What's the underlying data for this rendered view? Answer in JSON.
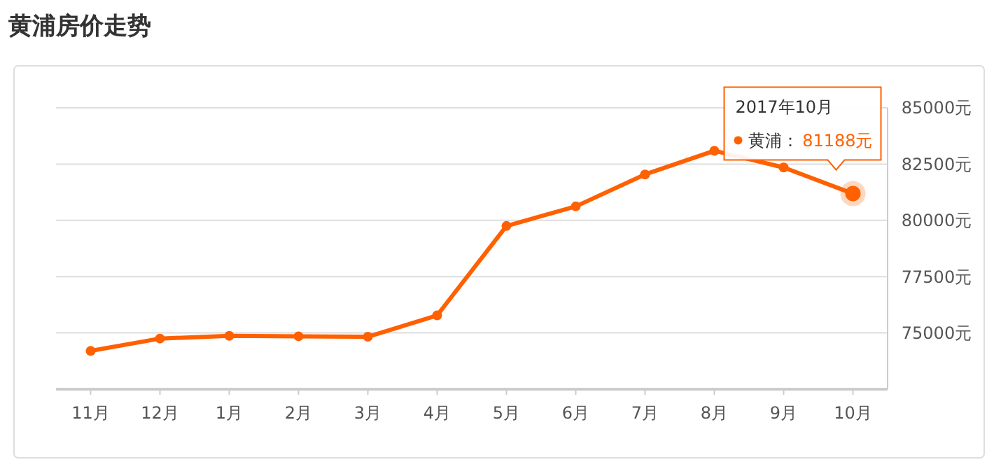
{
  "chart_data": {
    "type": "line",
    "title": "黄浦房价走势",
    "categories": [
      "11月",
      "12月",
      "1月",
      "2月",
      "3月",
      "4月",
      "5月",
      "6月",
      "7月",
      "8月",
      "9月",
      "10月"
    ],
    "series": [
      {
        "name": "黄浦",
        "color": "#ff6000",
        "values": [
          74200,
          74750,
          74870,
          74850,
          74830,
          75780,
          79750,
          80620,
          82040,
          83090,
          82350,
          81188
        ],
        "value_labels": [
          null,
          null,
          null,
          null,
          null,
          null,
          null,
          null,
          null,
          null,
          null,
          "81188元"
        ]
      }
    ],
    "ylim": [
      72500,
      85000
    ],
    "yticks": [
      {
        "value": 72500,
        "label": null
      },
      {
        "value": 75000,
        "label": "75000元"
      },
      {
        "value": 77500,
        "label": "77500元"
      },
      {
        "value": 80000,
        "label": "80000元"
      },
      {
        "value": 82500,
        "label": "82500元"
      },
      {
        "value": 85000,
        "label": "85000元"
      }
    ],
    "grid": "y",
    "marker": "circle",
    "line_style": "solid",
    "annotations": [
      "2017年10月",
      "："
    ]
  }
}
